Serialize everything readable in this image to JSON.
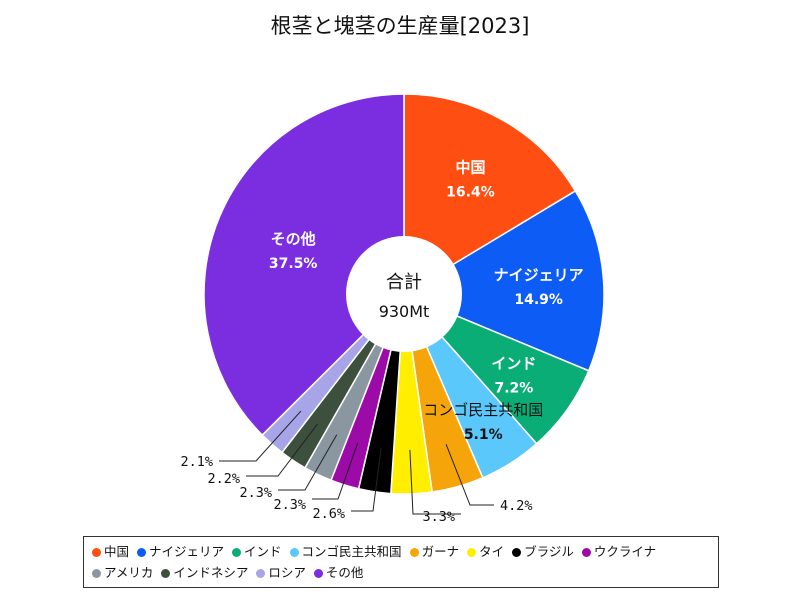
{
  "chart_data": {
    "type": "pie",
    "title": "根茎と塊茎の生産量[2023]",
    "center_label": "合計",
    "center_value": "930Mt",
    "slices": [
      {
        "name": "中国",
        "value": 16.4,
        "label": "16.4%",
        "color": "#ff4e12"
      },
      {
        "name": "ナイジェリア",
        "value": 14.9,
        "label": "14.9%",
        "color": "#0d5cf5"
      },
      {
        "name": "インド",
        "value": 7.2,
        "label": "7.2%",
        "color": "#0aad75"
      },
      {
        "name": "コンゴ民主共和国",
        "value": 5.1,
        "label": "5.1%",
        "color": "#5ac8fb"
      },
      {
        "name": "ガーナ",
        "value": 4.2,
        "label": "4.2%",
        "color": "#f5a50a"
      },
      {
        "name": "タイ",
        "value": 3.3,
        "label": "3.3%",
        "color": "#ffee00"
      },
      {
        "name": "ブラジル",
        "value": 2.6,
        "label": "2.6%",
        "color": "#000000"
      },
      {
        "name": "ウクライナ",
        "value": 2.3,
        "label": "2.3%",
        "color": "#9c0aa8"
      },
      {
        "name": "アメリカ",
        "value": 2.3,
        "label": "2.3%",
        "color": "#8a96a0"
      },
      {
        "name": "インドネシア",
        "value": 2.2,
        "label": "2.2%",
        "color": "#3d4f3d"
      },
      {
        "name": "ロシア",
        "value": 2.1,
        "label": "2.1%",
        "color": "#a8a4e8"
      },
      {
        "name": "その他",
        "value": 37.5,
        "label": "37.5%",
        "color": "#7b2de0"
      }
    ]
  }
}
